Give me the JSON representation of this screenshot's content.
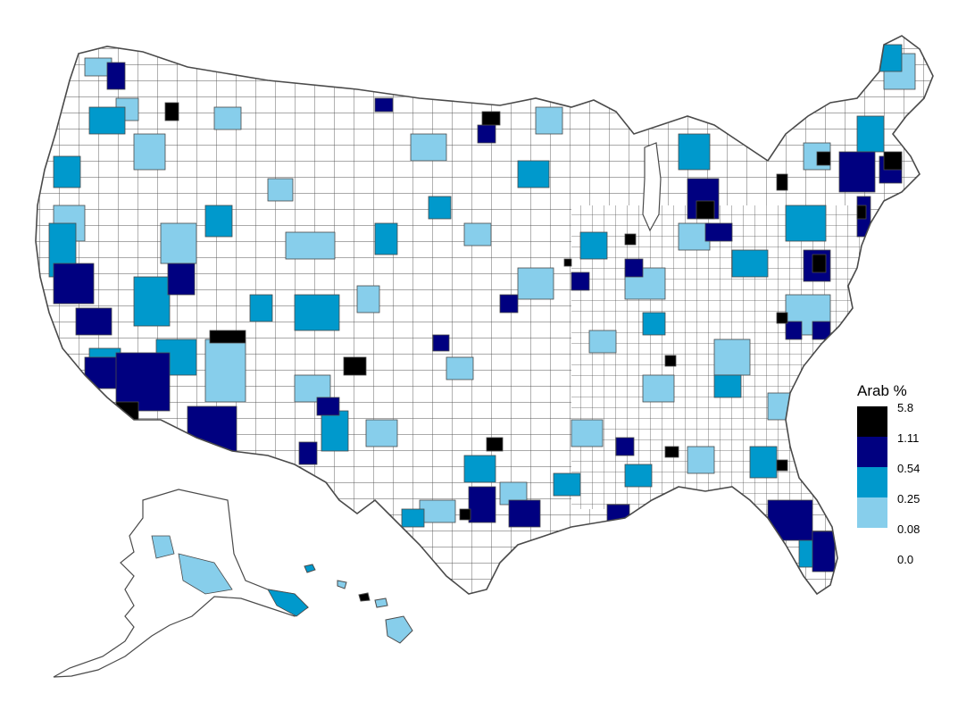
{
  "legend": {
    "title": "Arab %",
    "bins": [
      {
        "label": "5.8",
        "color": "#000000"
      },
      {
        "label": "1.11",
        "color": "#000080"
      },
      {
        "label": "0.54",
        "color": "#0099CC"
      },
      {
        "label": "0.25",
        "color": "#87CEEB"
      },
      {
        "label": "0.08",
        "color": "#FFFFFF"
      },
      {
        "label": "0.0",
        "color": null
      }
    ]
  },
  "map": {
    "border_color": "#4a4a4a",
    "regions": [
      "contiguous-us",
      "alaska",
      "hawaii"
    ]
  }
}
